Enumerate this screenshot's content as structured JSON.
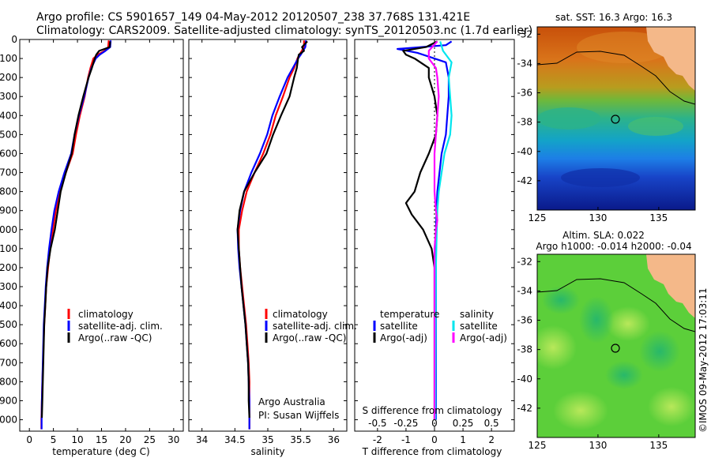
{
  "header": {
    "line1": "Argo profile: CS 5901657_149 04-May-2012 20120507_238 37.768S 131.421E",
    "line2": "Climatology: CARS2009. Satellite-adjusted climatology: synTS_20120503.nc (1.7d earlier)"
  },
  "colors": {
    "climatology": "#ff0000",
    "satellite": "#0000ff",
    "argo": "#000000",
    "salinity_satellite": "#00e5ee",
    "salinity_argo": "#ff00ff",
    "land": "#f4b889"
  },
  "chart_data": [
    {
      "type": "line",
      "id": "temperature",
      "xlabel": "temperature (deg C)",
      "xlim": [
        -2,
        32
      ],
      "ylim": [
        2060,
        0
      ],
      "xticks": [
        0,
        5,
        10,
        15,
        20,
        25,
        30
      ],
      "yticks": [
        0,
        100,
        200,
        300,
        400,
        500,
        600,
        700,
        800,
        900,
        1000,
        1100,
        1200,
        1300,
        1400,
        1500,
        1600,
        1700,
        1800,
        1900,
        2000
      ],
      "legend": [
        "climatology",
        "satellite-adj. clim.",
        "Argo(..raw -QC)"
      ],
      "series": [
        {
          "name": "climatology",
          "color_key": "climatology",
          "points": [
            [
              16.5,
              5
            ],
            [
              16.4,
              40
            ],
            [
              15.6,
              60
            ],
            [
              14.2,
              80
            ],
            [
              13.3,
              100
            ],
            [
              12.7,
              150
            ],
            [
              12.2,
              200
            ],
            [
              11.5,
              300
            ],
            [
              10.5,
              400
            ],
            [
              9.7,
              500
            ],
            [
              9.0,
              600
            ],
            [
              7.6,
              700
            ],
            [
              6.4,
              800
            ],
            [
              5.5,
              900
            ],
            [
              4.9,
              1000
            ],
            [
              4.3,
              1100
            ],
            [
              3.9,
              1200
            ],
            [
              3.5,
              1300
            ],
            [
              3.3,
              1400
            ],
            [
              3.1,
              1500
            ],
            [
              2.95,
              1600
            ],
            [
              2.85,
              1700
            ],
            [
              2.7,
              1800
            ],
            [
              2.6,
              1900
            ],
            [
              2.5,
              2000
            ],
            [
              2.5,
              2050
            ]
          ]
        },
        {
          "name": "satellite-adj. clim.",
          "color_key": "satellite",
          "points": [
            [
              16.9,
              5
            ],
            [
              16.8,
              40
            ],
            [
              15.8,
              60
            ],
            [
              14.6,
              80
            ],
            [
              13.8,
              100
            ],
            [
              12.9,
              150
            ],
            [
              12.3,
              200
            ],
            [
              11.4,
              300
            ],
            [
              10.3,
              400
            ],
            [
              9.4,
              500
            ],
            [
              8.7,
              600
            ],
            [
              7.3,
              700
            ],
            [
              6.1,
              800
            ],
            [
              5.2,
              900
            ],
            [
              4.6,
              1000
            ],
            [
              4.1,
              1100
            ],
            [
              3.7,
              1200
            ],
            [
              3.4,
              1300
            ],
            [
              3.2,
              1400
            ],
            [
              3.0,
              1500
            ],
            [
              2.9,
              1600
            ],
            [
              2.8,
              1700
            ],
            [
              2.7,
              1800
            ],
            [
              2.6,
              1900
            ],
            [
              2.55,
              2000
            ],
            [
              2.55,
              2050
            ]
          ]
        },
        {
          "name": "Argo(..raw -QC)",
          "color_key": "argo",
          "points": [
            [
              16.8,
              10
            ],
            [
              16.7,
              40
            ],
            [
              14.5,
              60
            ],
            [
              13.9,
              80
            ],
            [
              13.6,
              100
            ],
            [
              13.0,
              150
            ],
            [
              12.3,
              200
            ],
            [
              11.2,
              300
            ],
            [
              10.2,
              400
            ],
            [
              9.4,
              500
            ],
            [
              8.8,
              600
            ],
            [
              7.6,
              700
            ],
            [
              6.5,
              800
            ],
            [
              5.9,
              900
            ],
            [
              5.3,
              1000
            ],
            [
              4.4,
              1100
            ],
            [
              3.8,
              1200
            ],
            [
              3.5,
              1300
            ],
            [
              3.3,
              1400
            ],
            [
              3.1,
              1500
            ],
            [
              3.0,
              1600
            ],
            [
              2.9,
              1700
            ],
            [
              2.8,
              1800
            ],
            [
              2.7,
              1900
            ],
            [
              2.6,
              1990
            ]
          ]
        }
      ]
    },
    {
      "type": "line",
      "id": "salinity",
      "xlabel": "salinity",
      "xlim": [
        33.8,
        36.2
      ],
      "ylim": [
        2060,
        0
      ],
      "xticks": [
        34,
        34.5,
        35,
        35.5,
        36
      ],
      "legend": [
        "climatology",
        "satellite-adj. clim.",
        "Argo(..raw -QC)"
      ],
      "annotation": [
        "Argo Australia",
        "PI: Susan Wijffels"
      ],
      "series": [
        {
          "name": "climatology",
          "color_key": "climatology",
          "points": [
            [
              35.55,
              5
            ],
            [
              35.55,
              40
            ],
            [
              35.48,
              80
            ],
            [
              35.45,
              100
            ],
            [
              35.4,
              150
            ],
            [
              35.33,
              200
            ],
            [
              35.23,
              300
            ],
            [
              35.12,
              400
            ],
            [
              35.04,
              500
            ],
            [
              34.93,
              600
            ],
            [
              34.8,
              700
            ],
            [
              34.68,
              800
            ],
            [
              34.61,
              900
            ],
            [
              34.56,
              1000
            ],
            [
              34.56,
              1100
            ],
            [
              34.58,
              1200
            ],
            [
              34.61,
              1300
            ],
            [
              34.64,
              1400
            ],
            [
              34.67,
              1500
            ],
            [
              34.69,
              1600
            ],
            [
              34.71,
              1700
            ],
            [
              34.72,
              1800
            ],
            [
              34.72,
              1900
            ],
            [
              34.72,
              2000
            ],
            [
              34.72,
              2050
            ]
          ]
        },
        {
          "name": "satellite-adj. clim.",
          "color_key": "satellite",
          "points": [
            [
              35.58,
              5
            ],
            [
              35.57,
              40
            ],
            [
              35.5,
              80
            ],
            [
              35.46,
              100
            ],
            [
              35.38,
              150
            ],
            [
              35.3,
              200
            ],
            [
              35.18,
              300
            ],
            [
              35.07,
              400
            ],
            [
              34.99,
              500
            ],
            [
              34.88,
              600
            ],
            [
              34.75,
              700
            ],
            [
              34.64,
              800
            ],
            [
              34.58,
              900
            ],
            [
              34.54,
              1000
            ],
            [
              34.55,
              1100
            ],
            [
              34.57,
              1200
            ],
            [
              34.6,
              1300
            ],
            [
              34.63,
              1400
            ],
            [
              34.66,
              1500
            ],
            [
              34.68,
              1600
            ],
            [
              34.7,
              1700
            ],
            [
              34.71,
              1800
            ],
            [
              34.72,
              1900
            ],
            [
              34.72,
              2000
            ],
            [
              34.72,
              2050
            ]
          ]
        },
        {
          "name": "Argo(..raw -QC)",
          "color_key": "argo",
          "points": [
            [
              35.6,
              10
            ],
            [
              35.52,
              40
            ],
            [
              35.55,
              60
            ],
            [
              35.47,
              80
            ],
            [
              35.46,
              100
            ],
            [
              35.44,
              150
            ],
            [
              35.4,
              200
            ],
            [
              35.33,
              300
            ],
            [
              35.2,
              400
            ],
            [
              35.08,
              500
            ],
            [
              34.98,
              600
            ],
            [
              34.8,
              700
            ],
            [
              34.64,
              800
            ],
            [
              34.57,
              900
            ],
            [
              34.54,
              1000
            ],
            [
              34.56,
              1100
            ],
            [
              34.58,
              1200
            ],
            [
              34.6,
              1300
            ],
            [
              34.63,
              1400
            ],
            [
              34.66,
              1500
            ],
            [
              34.68,
              1600
            ],
            [
              34.7,
              1700
            ],
            [
              34.71,
              1800
            ],
            [
              34.71,
              1900
            ],
            [
              34.72,
              1990
            ]
          ]
        }
      ]
    },
    {
      "type": "line",
      "id": "difference",
      "xlabel": "T difference from climatology",
      "top_axis_label": "S difference from climatology",
      "xlim": [
        -2.8,
        2.8
      ],
      "ylim": [
        2060,
        0
      ],
      "xticks": [
        -2,
        -1,
        0,
        1,
        2
      ],
      "top_ticks": [
        "-0.5",
        "-0.25",
        "0",
        "0.25",
        "0.5"
      ],
      "legend_temperature": {
        "title": "temperature",
        "items": [
          "satellite",
          "Argo(-adj)"
        ]
      },
      "legend_salinity": {
        "title": "salinity",
        "items": [
          "satellite",
          "Argo(-adj)"
        ]
      },
      "series": [
        {
          "name": "temperature satellite",
          "color_key": "satellite",
          "points": [
            [
              0.6,
              10
            ],
            [
              0.4,
              30
            ],
            [
              -1.3,
              50
            ],
            [
              -0.6,
              70
            ],
            [
              -0.2,
              90
            ],
            [
              0.4,
              120
            ],
            [
              0.5,
              200
            ],
            [
              0.5,
              300
            ],
            [
              0.45,
              400
            ],
            [
              0.4,
              500
            ],
            [
              0.25,
              600
            ],
            [
              0.1,
              800
            ],
            [
              0.05,
              1000
            ],
            [
              0.05,
              1200
            ],
            [
              0.05,
              1500
            ],
            [
              0.05,
              1800
            ],
            [
              0.05,
              2000
            ]
          ]
        },
        {
          "name": "temperature Argo(-adj)",
          "color_key": "argo",
          "points": [
            [
              0.1,
              10
            ],
            [
              -0.3,
              40
            ],
            [
              -1.1,
              60
            ],
            [
              -1.0,
              80
            ],
            [
              -0.7,
              100
            ],
            [
              -0.2,
              150
            ],
            [
              -0.2,
              200
            ],
            [
              0,
              300
            ],
            [
              0.1,
              400
            ],
            [
              0.05,
              500
            ],
            [
              -0.2,
              600
            ],
            [
              -0.5,
              700
            ],
            [
              -0.7,
              800
            ],
            [
              -1.0,
              860
            ],
            [
              -0.8,
              920
            ],
            [
              -0.4,
              1000
            ],
            [
              -0.1,
              1100
            ],
            [
              0,
              1200
            ],
            [
              0,
              1500
            ],
            [
              0,
              1800
            ],
            [
              0,
              2000
            ]
          ]
        },
        {
          "name": "salinity satellite",
          "color_key": "salinity_satellite",
          "points": [
            [
              0.2,
              10
            ],
            [
              0.3,
              60
            ],
            [
              0.6,
              120
            ],
            [
              0.5,
              200
            ],
            [
              0.55,
              300
            ],
            [
              0.6,
              400
            ],
            [
              0.55,
              500
            ],
            [
              0.35,
              600
            ],
            [
              0.25,
              700
            ],
            [
              0.15,
              800
            ],
            [
              0.1,
              900
            ],
            [
              0.08,
              1000
            ],
            [
              0.05,
              1200
            ],
            [
              0.04,
              1500
            ],
            [
              0.03,
              1800
            ],
            [
              0.03,
              2000
            ]
          ]
        },
        {
          "name": "salinity Argo(-adj)",
          "color_key": "salinity_argo",
          "points": [
            [
              0.1,
              10
            ],
            [
              -0.2,
              60
            ],
            [
              -0.2,
              100
            ],
            [
              0.05,
              150
            ],
            [
              0.1,
              200
            ],
            [
              0.15,
              300
            ],
            [
              0.1,
              400
            ],
            [
              0.05,
              500
            ],
            [
              0.0,
              600
            ],
            [
              0.0,
              700
            ],
            [
              0.0,
              800
            ],
            [
              0.05,
              900
            ],
            [
              0.1,
              950
            ],
            [
              0.05,
              1000
            ],
            [
              0.0,
              1100
            ],
            [
              0.0,
              1300
            ],
            [
              0.0,
              1600
            ],
            [
              0.0,
              2000
            ]
          ]
        }
      ]
    },
    {
      "type": "heatmap",
      "id": "sst_map",
      "title": "sat. SST: 16.3 Argo: 16.3",
      "xlim": [
        125,
        138
      ],
      "ylim": [
        -44,
        -31.5
      ],
      "xticks": [
        "125",
        "130",
        "135"
      ],
      "yticks": [
        "-32",
        "-34",
        "-36",
        "-38",
        "-40",
        "-42"
      ],
      "marker": {
        "lon": 131.421,
        "lat": -37.768
      }
    },
    {
      "type": "heatmap",
      "id": "sla_map",
      "title": [
        "Altim. SLA: 0.022",
        "Argo h1000: -0.014 h2000: -0.04"
      ],
      "xlim": [
        125,
        138
      ],
      "ylim": [
        -44,
        -31.5
      ],
      "xticks": [
        "125",
        "130",
        "135"
      ],
      "yticks": [
        "-32",
        "-34",
        "-36",
        "-38",
        "-40",
        "-42"
      ],
      "marker": {
        "lon": 131.421,
        "lat": -37.768
      },
      "side_label": "©IMOS 09-May-2012 17:03:11"
    }
  ]
}
